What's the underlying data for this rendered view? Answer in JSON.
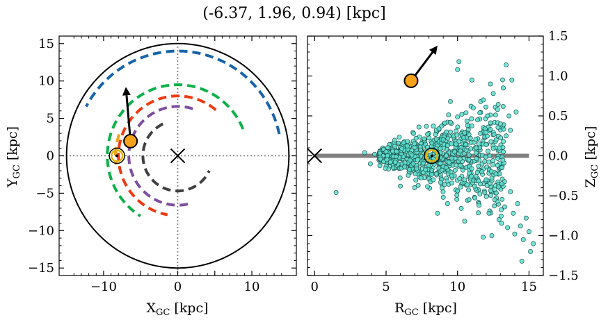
{
  "title": "(-6.37, 1.96, 0.94) [kpc]",
  "chart_data": [
    {
      "type": "scatter",
      "panel": "left",
      "xlabel_main": "X",
      "xlabel_sub": "GC",
      "xlabel_unit": " [kpc]",
      "ylabel_main": "Y",
      "ylabel_sub": "GC",
      "ylabel_unit": " [kpc]",
      "xlim": [
        -16,
        16
      ],
      "ylim": [
        -16,
        16
      ],
      "xticks": [
        -10,
        0,
        10
      ],
      "xtick_labels": [
        "−10",
        "0",
        "10"
      ],
      "yticks": [
        -15,
        -10,
        -5,
        0,
        5,
        10,
        15
      ],
      "ytick_labels": [
        "−15",
        "−10",
        "−5",
        "0",
        "5",
        "10",
        "15"
      ],
      "circle_radius": 15,
      "galactic_center": [
        0,
        0
      ],
      "sun_position": [
        -8.2,
        0
      ],
      "object_position": [
        -6.37,
        1.96
      ],
      "velocity_arrow_end": [
        -7.0,
        9.2
      ],
      "arms": [
        {
          "color": "#1764ab",
          "radius": 14.0,
          "start_deg": 12,
          "end_deg": 152
        },
        {
          "color": "#0db04b",
          "radius": 9.5,
          "start_deg": 22,
          "end_deg": 238
        },
        {
          "color": "#ee3a12",
          "radius": 8.0,
          "start_deg": 50,
          "end_deg": 260
        },
        {
          "color": "#7d4f9e",
          "radius": 6.6,
          "start_deg": 72,
          "end_deg": 285
        },
        {
          "color": "#f2a11c",
          "radius": 8.4,
          "start_deg": 160,
          "end_deg": 188
        },
        {
          "color": "#404040",
          "radius": 4.7,
          "start_deg": 115,
          "end_deg": 335
        }
      ]
    },
    {
      "type": "scatter",
      "panel": "right",
      "xlabel_main": "R",
      "xlabel_sub": "GC",
      "xlabel_unit": " [kpc]",
      "ylabel_main": "Z",
      "ylabel_sub": "GC",
      "ylabel_unit": " [kpc]",
      "xlim": [
        -0.5,
        16
      ],
      "ylim": [
        -1.5,
        1.5
      ],
      "xticks": [
        0,
        5,
        10,
        15
      ],
      "xtick_labels": [
        "0",
        "5",
        "10",
        "15"
      ],
      "yticks": [
        -1.5,
        -1.0,
        -0.5,
        0.0,
        0.5,
        1.0,
        1.5
      ],
      "ytick_labels": [
        "−1.5",
        "−1.0",
        "−0.5",
        "0.0",
        "0.5",
        "1.0",
        "1.5"
      ],
      "disk_line": {
        "x0": 0,
        "x1": 15,
        "y": 0,
        "color": "#808080"
      },
      "galactic_center": [
        0,
        0
      ],
      "sun_position": [
        8.2,
        0
      ],
      "object_position": [
        6.75,
        0.94
      ],
      "velocity_arrow_end": [
        8.6,
        1.38
      ],
      "point_color": "#5ee0d0",
      "points": [
        [
          4.2,
          0.02
        ],
        [
          4.6,
          -0.04
        ],
        [
          5.0,
          0.05
        ],
        [
          5.3,
          -0.08
        ],
        [
          5.6,
          0.12
        ],
        [
          5.9,
          -0.02
        ],
        [
          6.1,
          0.09
        ],
        [
          6.3,
          -0.14
        ],
        [
          6.5,
          0.18
        ],
        [
          6.7,
          0.03
        ],
        [
          6.9,
          -0.1
        ],
        [
          7.1,
          0.22
        ],
        [
          7.2,
          -0.05
        ],
        [
          7.4,
          0.11
        ],
        [
          7.6,
          -0.21
        ],
        [
          7.8,
          0.06
        ],
        [
          7.9,
          0.27
        ],
        [
          8.0,
          -0.12
        ],
        [
          8.2,
          0.16
        ],
        [
          8.3,
          -0.3
        ],
        [
          8.5,
          0.09
        ],
        [
          8.6,
          -0.04
        ],
        [
          8.7,
          0.34
        ],
        [
          8.9,
          -0.18
        ],
        [
          9.0,
          0.2
        ],
        [
          9.1,
          -0.36
        ],
        [
          9.3,
          0.13
        ],
        [
          9.4,
          -0.08
        ],
        [
          9.5,
          0.42
        ],
        [
          9.6,
          -0.25
        ],
        [
          9.8,
          0.05
        ],
        [
          9.9,
          0.31
        ],
        [
          10.0,
          -0.44
        ],
        [
          10.1,
          0.18
        ],
        [
          10.2,
          -0.12
        ],
        [
          10.3,
          0.52
        ],
        [
          10.5,
          -0.3
        ],
        [
          10.6,
          0.07
        ],
        [
          10.7,
          0.38
        ],
        [
          10.8,
          -0.55
        ],
        [
          10.9,
          0.22
        ],
        [
          11.0,
          -0.16
        ],
        [
          11.1,
          0.6
        ],
        [
          11.2,
          -0.38
        ],
        [
          11.3,
          0.1
        ],
        [
          11.4,
          0.45
        ],
        [
          11.5,
          -0.62
        ],
        [
          11.6,
          0.28
        ],
        [
          11.7,
          -0.2
        ],
        [
          11.8,
          0.7
        ],
        [
          11.9,
          -0.46
        ],
        [
          12.0,
          0.14
        ],
        [
          12.1,
          0.5
        ],
        [
          12.2,
          -0.72
        ],
        [
          12.3,
          0.33
        ],
        [
          12.4,
          -0.28
        ],
        [
          12.5,
          0.78
        ],
        [
          12.6,
          -0.55
        ],
        [
          12.7,
          0.2
        ],
        [
          12.8,
          0.58
        ],
        [
          12.9,
          -0.8
        ],
        [
          13.0,
          0.4
        ],
        [
          13.1,
          -0.35
        ],
        [
          13.2,
          0.85
        ],
        [
          13.3,
          -0.64
        ],
        [
          13.4,
          0.25
        ],
        [
          13.5,
          -0.9
        ],
        [
          13.6,
          0.5
        ],
        [
          13.7,
          -0.45
        ],
        [
          13.8,
          0.95
        ],
        [
          13.9,
          -0.72
        ],
        [
          14.0,
          -0.98
        ],
        [
          14.2,
          -0.6
        ],
        [
          14.4,
          -0.88
        ],
        [
          14.6,
          -1.05
        ],
        [
          14.8,
          -0.78
        ],
        [
          15.0,
          -0.95
        ],
        [
          15.3,
          -1.1
        ],
        [
          14.5,
          -1.32
        ],
        [
          15.1,
          -1.2
        ],
        [
          12.4,
          -1.0
        ],
        [
          11.8,
          -1.02
        ],
        [
          9.3,
          -0.6
        ],
        [
          8.6,
          -0.72
        ],
        [
          6.0,
          -0.38
        ],
        [
          1.5,
          -0.46
        ],
        [
          3.5,
          0.04
        ],
        [
          3.9,
          -0.1
        ],
        [
          10.1,
          1.18
        ],
        [
          10.0,
          1.08
        ],
        [
          13.4,
          1.14
        ],
        [
          12.3,
          0.9
        ],
        [
          11.0,
          0.95
        ],
        [
          14.1,
          0.55
        ],
        [
          13.7,
          0.32
        ],
        [
          10.5,
          -0.82
        ],
        [
          9.5,
          0.68
        ],
        [
          9.0,
          -0.52
        ],
        [
          7.3,
          0.36
        ],
        [
          7.0,
          -0.4
        ],
        [
          12.8,
          -0.12
        ],
        [
          13.2,
          0.05
        ],
        [
          11.5,
          0.15
        ],
        [
          11.9,
          -0.07
        ],
        [
          10.8,
          0.01
        ],
        [
          10.2,
          0.06
        ],
        [
          9.6,
          -0.03
        ],
        [
          8.8,
          0.04
        ],
        [
          7.7,
          -0.02
        ],
        [
          6.8,
          0.01
        ],
        [
          5.7,
          -0.01
        ],
        [
          5.1,
          0.0
        ],
        [
          12.0,
          -0.3
        ],
        [
          12.6,
          -0.42
        ]
      ]
    }
  ]
}
